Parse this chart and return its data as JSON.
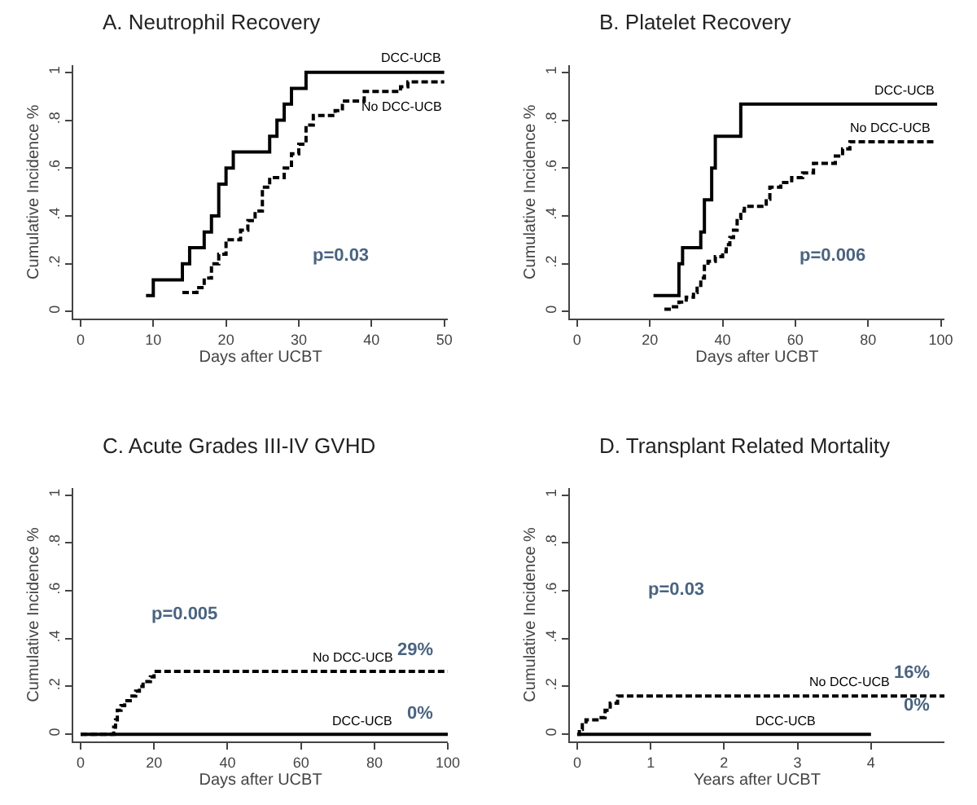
{
  "chart_data": [
    {
      "type": "step",
      "title": "A. Neutrophil Recovery",
      "xlabel": "Days after UCBT",
      "ylabel": "Cumulative Incidence %",
      "xlim": [
        -1,
        50.5
      ],
      "xticks": [
        0,
        10,
        20,
        30,
        40,
        50
      ],
      "ylim": [
        -0.03,
        1.03
      ],
      "yticks": [
        0,
        {
          "value": 0.2,
          "label": ".2"
        },
        {
          "value": 0.4,
          "label": ".4"
        },
        {
          "value": 0.6,
          "label": ".6"
        },
        {
          "value": 0.8,
          "label": ".8"
        },
        1
      ],
      "annotations": [
        "p=0.03"
      ],
      "series": [
        {
          "name": "DCC-UCB",
          "color": "#000000",
          "line_style": "solid",
          "x": [
            9,
            10,
            14,
            15,
            17,
            18,
            19,
            20,
            21,
            26,
            27,
            28,
            29,
            31,
            50
          ],
          "values": [
            0.067,
            0.133,
            0.2,
            0.267,
            0.333,
            0.4,
            0.533,
            0.6,
            0.667,
            0.733,
            0.8,
            0.867,
            0.933,
            1.0,
            1.0
          ]
        },
        {
          "name": "No DCC-UCB",
          "color": "#000000",
          "line_style": "dashed",
          "x": [
            14,
            16,
            17,
            18,
            19,
            20,
            22,
            23,
            24,
            25,
            26,
            28,
            29,
            30,
            31,
            32,
            35,
            36,
            39,
            44,
            45,
            50
          ],
          "values": [
            0.08,
            0.1,
            0.14,
            0.2,
            0.24,
            0.3,
            0.34,
            0.38,
            0.42,
            0.52,
            0.56,
            0.6,
            0.66,
            0.7,
            0.78,
            0.82,
            0.84,
            0.88,
            0.92,
            0.94,
            0.96,
            0.96
          ]
        }
      ]
    },
    {
      "type": "step",
      "title": "B. Platelet Recovery",
      "xlabel": "Days after UCBT",
      "ylabel": "Cumulative Incidence %",
      "xlim": [
        -2,
        101
      ],
      "xticks": [
        0,
        20,
        40,
        60,
        80,
        100
      ],
      "ylim": [
        -0.03,
        1.03
      ],
      "yticks": [
        0,
        {
          "value": 0.2,
          "label": ".2"
        },
        {
          "value": 0.4,
          "label": ".4"
        },
        {
          "value": 0.6,
          "label": ".6"
        },
        {
          "value": 0.8,
          "label": ".8"
        },
        1
      ],
      "annotations": [
        "p=0.006"
      ],
      "series": [
        {
          "name": "DCC-UCB",
          "color": "#000000",
          "line_style": "solid",
          "x": [
            21,
            28,
            29,
            34,
            35,
            37,
            38,
            45,
            99
          ],
          "values": [
            0.067,
            0.2,
            0.267,
            0.333,
            0.467,
            0.6,
            0.733,
            0.867,
            0.867
          ]
        },
        {
          "name": "No DCC-UCB",
          "color": "#000000",
          "line_style": "dashed",
          "x": [
            24,
            26,
            28,
            30,
            32,
            33,
            34,
            35,
            36,
            38,
            40,
            41,
            42,
            43,
            44,
            45,
            46,
            52,
            53,
            56,
            59,
            62,
            65,
            71,
            73,
            75,
            98
          ],
          "values": [
            0.01,
            0.02,
            0.04,
            0.06,
            0.08,
            0.11,
            0.14,
            0.19,
            0.21,
            0.23,
            0.25,
            0.28,
            0.31,
            0.34,
            0.39,
            0.42,
            0.44,
            0.47,
            0.52,
            0.54,
            0.56,
            0.58,
            0.62,
            0.65,
            0.68,
            0.71,
            0.71
          ]
        }
      ]
    },
    {
      "type": "step",
      "title": "C. Acute Grades III-IV GVHD",
      "xlabel": "Days after UCBT",
      "ylabel": "Cumulative Incidence %",
      "xlim": [
        -2,
        100
      ],
      "xticks": [
        0,
        20,
        40,
        60,
        80,
        100
      ],
      "ylim": [
        -0.03,
        1.03
      ],
      "yticks": [
        0,
        {
          "value": 0.2,
          "label": ".2"
        },
        {
          "value": 0.4,
          "label": ".4"
        },
        {
          "value": 0.6,
          "label": ".6"
        },
        {
          "value": 0.8,
          "label": ".8"
        },
        1
      ],
      "annotations": [
        "p=0.005",
        "29%",
        "0%"
      ],
      "series": [
        {
          "name": "No DCC-UCB",
          "color": "#000000",
          "line_style": "dashed",
          "x": [
            0,
            9,
            9.5,
            10,
            11,
            12,
            14,
            15,
            16,
            17,
            19,
            20,
            100
          ],
          "values": [
            0,
            0.03,
            0.06,
            0.1,
            0.12,
            0.14,
            0.16,
            0.18,
            0.2,
            0.22,
            0.24,
            0.263,
            0.263
          ]
        },
        {
          "name": "DCC-UCB",
          "color": "#000000",
          "line_style": "solid",
          "x": [
            0,
            100
          ],
          "values": [
            0,
            0
          ]
        }
      ]
    },
    {
      "type": "step",
      "title": "D. Transplant Related Mortality",
      "xlabel": "Years after UCBT",
      "ylabel": "Cumulative Incidence %",
      "xlim": [
        -0.1,
        5
      ],
      "xticks": [
        0,
        1,
        2,
        3,
        4
      ],
      "ylim": [
        -0.03,
        1.03
      ],
      "yticks": [
        0,
        {
          "value": 0.2,
          "label": ".2"
        },
        {
          "value": 0.4,
          "label": ".4"
        },
        {
          "value": 0.6,
          "label": ".6"
        },
        {
          "value": 0.8,
          "label": ".8"
        },
        1
      ],
      "annotations": [
        "p=0.03",
        "16%",
        "0%"
      ],
      "series": [
        {
          "name": "No DCC-UCB",
          "color": "#000000",
          "line_style": "dashed",
          "x": [
            0,
            0.03,
            0.07,
            0.12,
            0.3,
            0.38,
            0.45,
            0.55,
            5
          ],
          "values": [
            0,
            0.02,
            0.04,
            0.06,
            0.07,
            0.1,
            0.13,
            0.16,
            0.16
          ]
        },
        {
          "name": "DCC-UCB",
          "color": "#000000",
          "line_style": "solid",
          "x": [
            0,
            4
          ],
          "values": [
            0,
            0
          ]
        }
      ]
    }
  ]
}
